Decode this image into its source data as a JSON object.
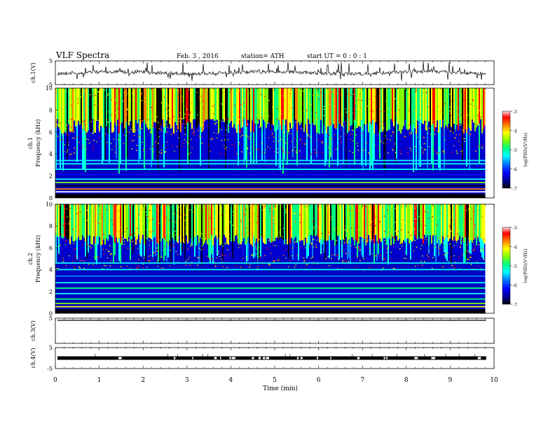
{
  "header": {
    "title": "VLF  Spectra",
    "date": "Feb. 3  , 2016",
    "station": "station= ATH",
    "start": "start  UT  =    0  : 0   : 1"
  },
  "chart_data": [
    {
      "type": "line",
      "panel": "ch1-waveform",
      "ylabel": "ch.1(V)",
      "ylim": [
        -5,
        5
      ],
      "yticks": [
        "5",
        "-5"
      ],
      "xlim": [
        0,
        10
      ],
      "baseline": 0,
      "color": "#000000"
    },
    {
      "type": "heatmap",
      "panel": "ch1-spectrogram",
      "ylabel_channel": "ch.1",
      "ylabel": "Frequency  (kHz)",
      "ylim": [
        0,
        10
      ],
      "yticks": [
        "0",
        "2",
        "4",
        "6",
        "8",
        "10"
      ],
      "xlim": [
        0,
        9.8
      ],
      "colorbar": {
        "label": "log(PSD)(V²/Hz)",
        "range": [
          -7,
          -3
        ],
        "ticks": [
          "-3",
          "-4",
          "-5",
          "-6",
          "-7"
        ]
      }
    },
    {
      "type": "heatmap",
      "panel": "ch2-spectrogram",
      "ylabel_channel": "ch.2",
      "ylabel": "Frequency  (kHz)",
      "ylim": [
        0,
        10
      ],
      "yticks": [
        "0",
        "2",
        "4",
        "6",
        "8",
        "10"
      ],
      "xlim": [
        0,
        9.8
      ],
      "colorbar": {
        "label": "log(PSD)(V²/Hz)",
        "range": [
          -7,
          -3
        ],
        "ticks": [
          "-3",
          "-4",
          "-5",
          "-6",
          "-7"
        ]
      }
    },
    {
      "type": "line",
      "panel": "ch3-waveform",
      "ylabel": "ch.3(V)",
      "ylim": [
        -5,
        5
      ],
      "yticks": [
        "5"
      ],
      "xlim": [
        0,
        10
      ],
      "baseline": 5,
      "color": "#000000"
    },
    {
      "type": "line",
      "panel": "ch4-waveform",
      "ylabel": "ch.4(V)",
      "ylim": [
        -5,
        5
      ],
      "yticks": [
        "5",
        "-5"
      ],
      "xlim": [
        0,
        10
      ],
      "baseline": 0,
      "color": "#000000"
    }
  ],
  "xaxis": {
    "label": "Time  (min)",
    "ticks": [
      "0",
      "1",
      "2",
      "3",
      "4",
      "5",
      "6",
      "7",
      "8",
      "9",
      "10"
    ],
    "range": [
      0,
      10
    ]
  },
  "colors": {
    "colormap": [
      "#000000",
      "#00007f",
      "#0000ff",
      "#0080ff",
      "#00ffff",
      "#00ff80",
      "#80ff00",
      "#ffff00",
      "#ff8000",
      "#ff0000",
      "#ffc8c8"
    ]
  }
}
